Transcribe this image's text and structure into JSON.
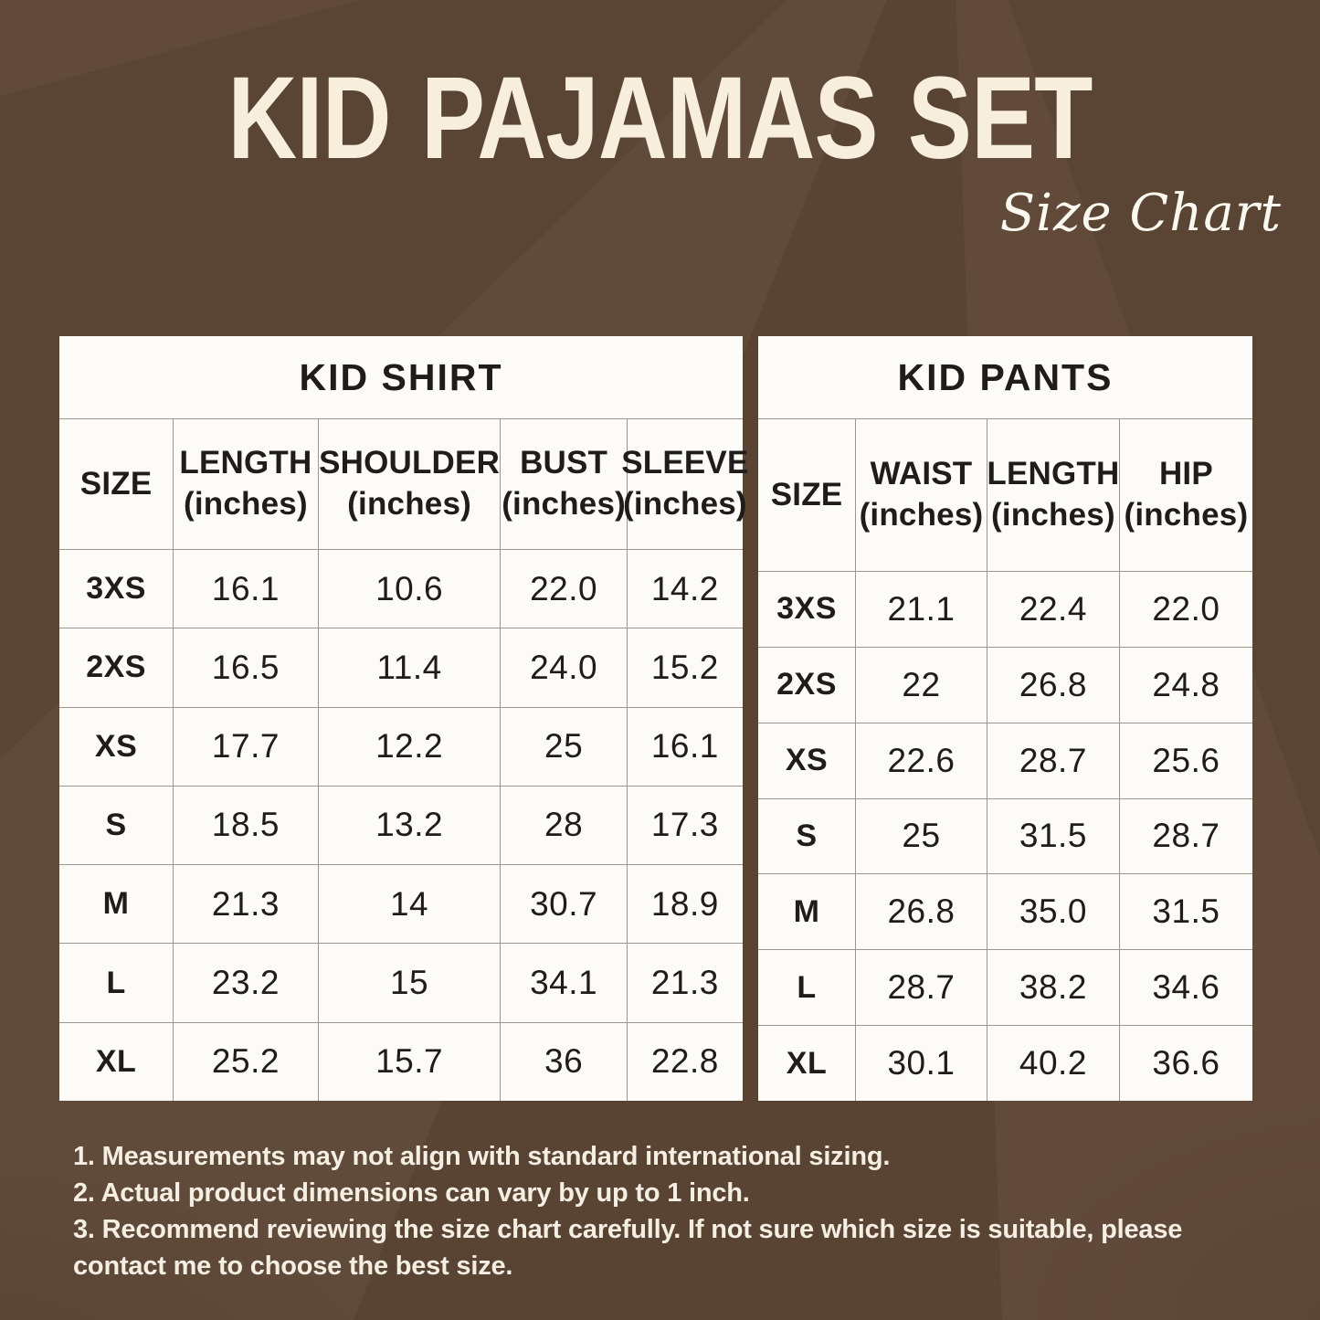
{
  "header": {
    "title": "KID PAJAMAS SET",
    "subtitle": "Size Chart"
  },
  "shirt": {
    "title": "KID SHIRT",
    "columns": [
      {
        "label": "SIZE",
        "unit": ""
      },
      {
        "label": "LENGTH",
        "unit": "(inches)"
      },
      {
        "label": "SHOULDER",
        "unit": "(inches)"
      },
      {
        "label": "BUST",
        "unit": "(inches)"
      },
      {
        "label": "SLEEVE",
        "unit": "(inches)"
      }
    ],
    "rows": [
      {
        "size": "3XS",
        "length": "16.1",
        "shoulder": "10.6",
        "bust": "22.0",
        "sleeve": "14.2"
      },
      {
        "size": "2XS",
        "length": "16.5",
        "shoulder": "11.4",
        "bust": "24.0",
        "sleeve": "15.2"
      },
      {
        "size": "XS",
        "length": "17.7",
        "shoulder": "12.2",
        "bust": "25",
        "sleeve": "16.1"
      },
      {
        "size": "S",
        "length": "18.5",
        "shoulder": "13.2",
        "bust": "28",
        "sleeve": "17.3"
      },
      {
        "size": "M",
        "length": "21.3",
        "shoulder": "14",
        "bust": "30.7",
        "sleeve": "18.9"
      },
      {
        "size": "L",
        "length": "23.2",
        "shoulder": "15",
        "bust": "34.1",
        "sleeve": "21.3"
      },
      {
        "size": "XL",
        "length": "25.2",
        "shoulder": "15.7",
        "bust": "36",
        "sleeve": "22.8"
      }
    ]
  },
  "pants": {
    "title": "KID PANTS",
    "columns": [
      {
        "label": "SIZE",
        "unit": ""
      },
      {
        "label": "WAIST",
        "unit": "(inches)"
      },
      {
        "label": "LENGTH",
        "unit": "(inches)"
      },
      {
        "label": "HIP",
        "unit": "(inches)"
      }
    ],
    "rows": [
      {
        "size": "3XS",
        "waist": "21.1",
        "length": "22.4",
        "hip": "22.0"
      },
      {
        "size": "2XS",
        "waist": "22",
        "length": "26.8",
        "hip": "24.8"
      },
      {
        "size": "XS",
        "waist": "22.6",
        "length": "28.7",
        "hip": "25.6"
      },
      {
        "size": "S",
        "waist": "25",
        "length": "31.5",
        "hip": "28.7"
      },
      {
        "size": "M",
        "waist": "26.8",
        "length": "35.0",
        "hip": "31.5"
      },
      {
        "size": "L",
        "waist": "28.7",
        "length": "38.2",
        "hip": "34.6"
      },
      {
        "size": "XL",
        "waist": "30.1",
        "length": "40.2",
        "hip": "36.6"
      }
    ]
  },
  "notes": [
    "1. Measurements may not align with standard international sizing.",
    "2. Actual product dimensions can vary by up to 1 inch.",
    "3. Recommend reviewing the size chart carefully. If not sure which size is suitable, please contact me to choose the best size."
  ],
  "colors": {
    "background": "#5d4635",
    "table_background": "#fcfbf8",
    "grid_line": "#9e968e",
    "table_text": "#1f1c1a",
    "title_text": "#f7eedd",
    "notes_text": "#f5efe3"
  }
}
